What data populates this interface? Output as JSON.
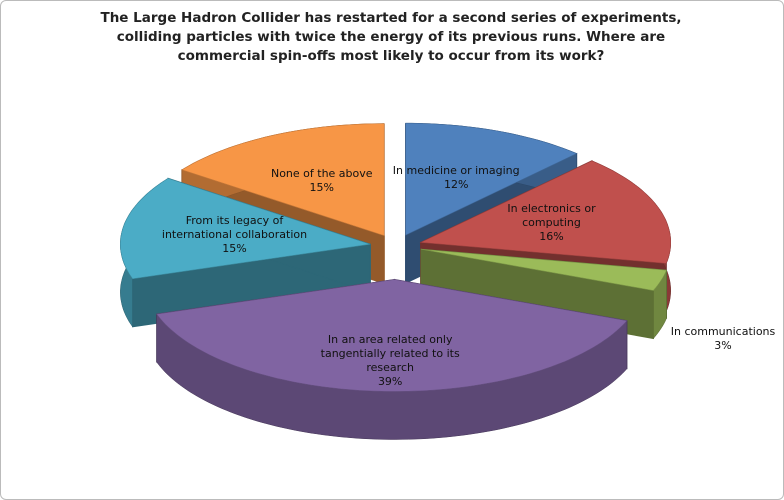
{
  "chart_data": {
    "type": "pie3d",
    "title": "The Large Hadron Collider has restarted for a second series of experiments, colliding particles with twice the energy of its previous runs. Where are commercial spin-offs most likely to occur from its work?",
    "categories": [
      "In medicine or imaging",
      "In electronics or computing",
      "In communications",
      "In an area related only tangentially related to its research",
      "From its legacy of international collaboration",
      "None of the above"
    ],
    "values": [
      12,
      16,
      3,
      39,
      15,
      15
    ],
    "value_labels": [
      "12%",
      "16%",
      "3%",
      "39%",
      "15%",
      "15%"
    ],
    "colors": [
      "#4f81bd",
      "#c0504d",
      "#9bbb59",
      "#8064a2",
      "#4bacc6",
      "#f79646"
    ]
  }
}
